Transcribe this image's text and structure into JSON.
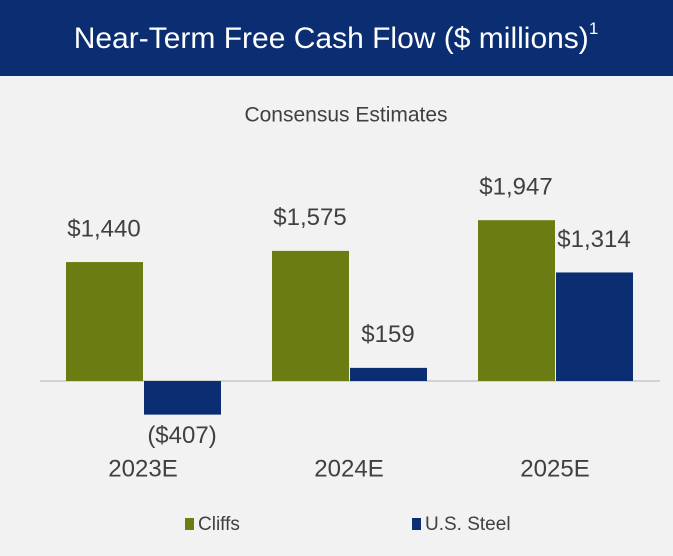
{
  "chart_data": {
    "type": "bar",
    "title": "Near-Term Free Cash Flow ($ millions)",
    "title_footnote": "1",
    "subtitle": "Consensus Estimates",
    "categories": [
      "2023E",
      "2024E",
      "2025E"
    ],
    "series": [
      {
        "name": "Cliffs",
        "color": "#6b7d12",
        "values": [
          1440,
          1575,
          1947
        ],
        "value_labels": [
          "$1,440",
          "$1,575",
          "$1,947"
        ]
      },
      {
        "name": "U.S. Steel",
        "color": "#0b2d72",
        "values": [
          -407,
          159,
          1314
        ],
        "value_labels": [
          "($407)",
          "$159",
          "$1,314"
        ]
      }
    ],
    "legend": "bottom"
  }
}
